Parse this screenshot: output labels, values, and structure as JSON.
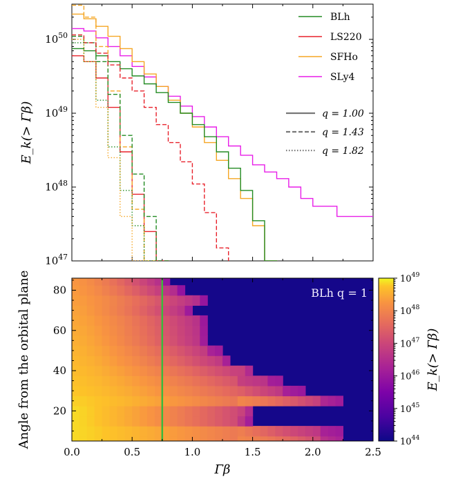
{
  "chart_data": [
    {
      "type": "line",
      "ylabel": "E_k(> Γβ)",
      "yscale": "log",
      "ylim": [
        1e+47,
        3e+50
      ],
      "xlim": [
        0.0,
        2.5
      ],
      "xlabel": "",
      "y_tick_labels": [
        "10^47",
        "10^48",
        "10^49",
        "10^50"
      ],
      "colors": {
        "BLh": "#228b22",
        "LS220": "#e8202a",
        "SFHo": "#f5a623",
        "SLy4": "#e81ce8"
      },
      "legend_eos": [
        "BLh",
        "LS220",
        "SFHo",
        "SLy4"
      ],
      "legend_q": [
        {
          "label": "q = 1.00",
          "style": "solid"
        },
        {
          "label": "q = 1.43",
          "style": "dashed"
        },
        {
          "label": "q = 1.82",
          "style": "dotted"
        }
      ],
      "series": [
        {
          "eos": "SLy4",
          "q": 1.0,
          "x": [
            0.0,
            0.1,
            0.2,
            0.3,
            0.4,
            0.5,
            0.6,
            0.7,
            0.8,
            0.9,
            1.0,
            1.1,
            1.2,
            1.3,
            1.4,
            1.5,
            1.6,
            1.7,
            1.8,
            1.9,
            2.0,
            2.1,
            2.2,
            2.3,
            2.4,
            2.5
          ],
          "y": [
            1.4e+50,
            1.3e+50,
            1.05e+50,
            8e+49,
            6e+49,
            4.3e+49,
            3.1e+49,
            2.3e+49,
            1.7e+49,
            1.25e+49,
            9e+48,
            6.5e+48,
            4.8e+48,
            3.6e+48,
            2.7e+48,
            2e+48,
            1.6e+48,
            1.3e+48,
            1e+48,
            7e+47,
            5.5e+47,
            5.5e+47,
            4e+47,
            4e+47,
            4e+47,
            4e+47
          ]
        },
        {
          "eos": "SFHo",
          "q": 1.0,
          "x": [
            0.0,
            0.1,
            0.2,
            0.3,
            0.4,
            0.5,
            0.6,
            0.7,
            0.8,
            0.9,
            1.0,
            1.1,
            1.2,
            1.3,
            1.4,
            1.5,
            1.6
          ],
          "y": [
            2.2e+50,
            1.9e+50,
            1.5e+50,
            1.1e+50,
            7.5e+49,
            5e+49,
            3.4e+49,
            2.3e+49,
            1.5e+49,
            1e+49,
            6.5e+48,
            4e+48,
            2.3e+48,
            1.3e+48,
            7e+47,
            3e+47,
            1e+47
          ]
        },
        {
          "eos": "BLh",
          "q": 1.0,
          "x": [
            0.0,
            0.1,
            0.2,
            0.3,
            0.4,
            0.5,
            0.6,
            0.7,
            0.8,
            0.9,
            1.0,
            1.1,
            1.2,
            1.3,
            1.4,
            1.5,
            1.6
          ],
          "y": [
            7.5e+49,
            7e+49,
            6e+49,
            5e+49,
            4e+49,
            3.2e+49,
            2.5e+49,
            1.9e+49,
            1.4e+49,
            1e+49,
            7e+48,
            4.8e+48,
            3e+48,
            1.8e+48,
            9e+47,
            3.5e+47,
            1e+47
          ]
        },
        {
          "eos": "LS220",
          "q": 1.0,
          "x": [
            0.0,
            0.1,
            0.2,
            0.3,
            0.4,
            0.5,
            0.6,
            0.7
          ],
          "y": [
            6e+49,
            5e+49,
            3e+49,
            1.2e+49,
            3e+48,
            8e+47,
            2.5e+47,
            1e+47
          ]
        },
        {
          "eos": "SFHo",
          "q": 1.43,
          "x": [
            0.0,
            0.1,
            0.2,
            0.3,
            0.4,
            0.5,
            0.6
          ],
          "y": [
            2.9e+50,
            2e+50,
            8e+49,
            2e+49,
            3.5e+48,
            5e+47,
            1e+47
          ]
        },
        {
          "eos": "BLh",
          "q": 1.43,
          "x": [
            0.0,
            0.1,
            0.2,
            0.3,
            0.4,
            0.5,
            0.6,
            0.7
          ],
          "y": [
            1.1e+50,
            9e+49,
            5e+49,
            1.8e+49,
            5e+48,
            1.5e+48,
            4e+47,
            1e+47
          ]
        },
        {
          "eos": "LS220",
          "q": 1.43,
          "x": [
            0.0,
            0.1,
            0.2,
            0.3,
            0.4,
            0.5,
            0.6,
            0.7,
            0.8,
            0.9,
            1.0,
            1.1,
            1.2
          ],
          "y": [
            1.15e+50,
            9e+49,
            6.5e+49,
            4.5e+49,
            3e+49,
            2e+49,
            1.2e+49,
            7e+48,
            4e+48,
            2.2e+48,
            1.1e+48,
            4.5e+47,
            1.5e+47
          ]
        },
        {
          "eos": "BLh",
          "q": 1.82,
          "x": [
            0.0,
            0.1,
            0.2,
            0.3,
            0.4,
            0.5,
            0.6
          ],
          "y": [
            9e+49,
            5e+49,
            1.5e+49,
            3.5e+48,
            9e+47,
            3e+47,
            1e+47
          ]
        },
        {
          "eos": "SFHo",
          "q": 1.82,
          "x": [
            0.0,
            0.1,
            0.2,
            0.3,
            0.4,
            0.5
          ],
          "y": [
            1e+50,
            5e+49,
            1.2e+49,
            2.5e+48,
            4e+47,
            1e+47
          ]
        }
      ]
    },
    {
      "type": "heatmap",
      "xlabel": "Γβ",
      "ylabel": "Angle from the orbital plane",
      "xlim": [
        0.0,
        2.5
      ],
      "ylim": [
        5,
        86
      ],
      "x_ticks": [
        0.0,
        0.5,
        1.0,
        1.5,
        2.0,
        2.5
      ],
      "x_tick_labels": [
        "0.0",
        "0.5",
        "1.0",
        "1.5",
        "2.0",
        "2.5"
      ],
      "y_ticks": [
        20,
        40,
        60,
        80
      ],
      "y_tick_labels": [
        "20",
        "40",
        "60",
        "80"
      ],
      "annotation": "BLh q = 1",
      "vertical_line_x": 0.75,
      "vertical_line_color": "#3cb83c",
      "colorbar": {
        "label": "E_k(> Γβ)",
        "scale": "log",
        "range": [
          1e+44,
          1e+49
        ],
        "tick_labels": [
          "10^44",
          "10^45",
          "10^46",
          "10^47",
          "10^48",
          "10^49"
        ]
      },
      "rows_bottom_to_top": [
        {
          "angle": 5,
          "max_gamma_beta": 2.2
        },
        {
          "angle": 10,
          "max_gamma_beta": 2.2
        },
        {
          "angle": 15,
          "max_gamma_beta": 1.5
        },
        {
          "angle": 20,
          "max_gamma_beta": 1.5
        },
        {
          "angle": 25,
          "max_gamma_beta": 2.2
        },
        {
          "angle": 30,
          "max_gamma_beta": 1.9
        },
        {
          "angle": 35,
          "max_gamma_beta": 1.7
        },
        {
          "angle": 40,
          "max_gamma_beta": 1.5
        },
        {
          "angle": 45,
          "max_gamma_beta": 1.3
        },
        {
          "angle": 50,
          "max_gamma_beta": 1.2
        },
        {
          "angle": 55,
          "max_gamma_beta": 1.1
        },
        {
          "angle": 60,
          "max_gamma_beta": 1.1
        },
        {
          "angle": 65,
          "max_gamma_beta": 1.1
        },
        {
          "angle": 70,
          "max_gamma_beta": 1.0
        },
        {
          "angle": 75,
          "max_gamma_beta": 1.1
        },
        {
          "angle": 80,
          "max_gamma_beta": 0.9
        },
        {
          "angle": 85,
          "max_gamma_beta": 0.8
        }
      ]
    }
  ]
}
